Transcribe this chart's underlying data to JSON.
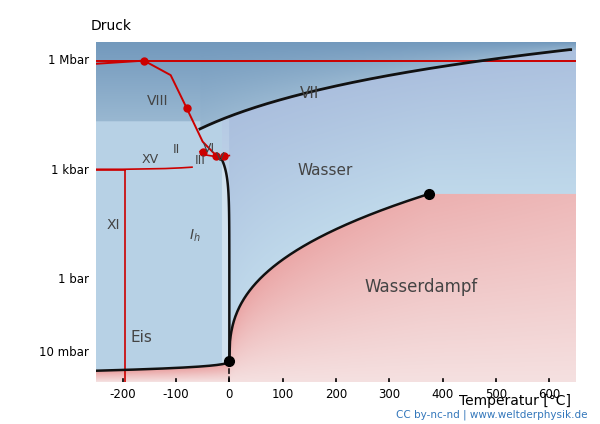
{
  "xlabel": "Temperatur [°C]",
  "ylabel": "Druck",
  "xlim": [
    -250,
    650
  ],
  "ylim": [
    -2.8,
    6.5
  ],
  "credit_text": "CC by-nc-nd | www.weltderphysik.de",
  "T_triple": 0.01,
  "P_triple_bar": 0.006,
  "T_crit": 374.0,
  "P_crit_bar": 221.0,
  "ytick_positions_log": [
    -2,
    0,
    3,
    6
  ],
  "ytick_labels": [
    "10 mbar",
    "1 bar",
    "1 kbar",
    "1 Mbar"
  ],
  "xtick_positions": [
    -200,
    -100,
    0,
    100,
    200,
    300,
    400,
    500,
    600
  ],
  "bg_white": "#ffffff",
  "color_ice": "#ccdde8",
  "color_water": "#a8bece",
  "color_water_dark": "#7a9fb5",
  "color_steam_hot": "#e87070",
  "color_steam_cold": "#f5f0f0",
  "color_high_pressure": "#6e8fa5",
  "red_curve_color": "#cc0000",
  "black_curve_color": "#111111",
  "label_color": "#444444",
  "phase_label_color": "#555555"
}
